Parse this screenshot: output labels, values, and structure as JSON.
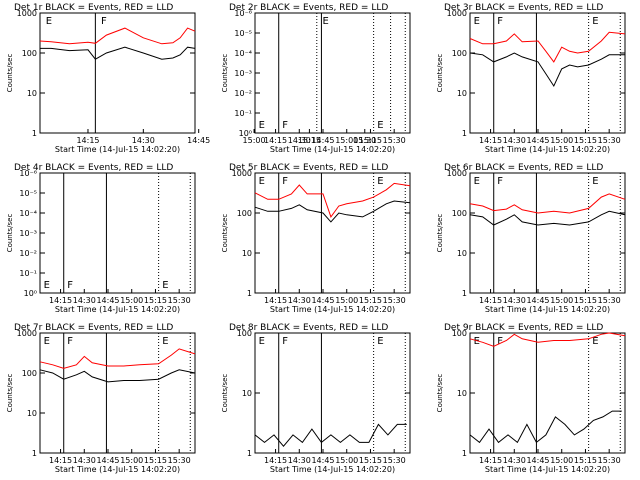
{
  "colors": {
    "background": "#ffffff",
    "axes": "#000000",
    "events": "#000000",
    "lld": "#ff0000"
  },
  "x_tick_labels": [
    "14:15",
    "14:30",
    "14:45",
    "15:00",
    "15:15",
    "15:30"
  ],
  "y_axis_label": "Counts/sec",
  "x_axis_label": "Start Time (14-Jul-15 14:02:20)",
  "chart_data": [
    {
      "type": "line",
      "title": "Det 1r BLACK = Events, RED = LLD",
      "ylabel": "Counts/sec",
      "xlabel": "Start Time (14-Jul-15 14:02:20)",
      "xlim": [
        "14:02",
        "14:44"
      ],
      "yscale": "log",
      "ylim": [
        1,
        1000
      ],
      "yticks": [
        "1",
        "10",
        "100",
        "1000"
      ],
      "xticks": [
        "14:15",
        "14:30",
        "14:45",
        "15:00",
        "15:15",
        "15:30"
      ],
      "markers": [
        "E",
        "F",
        "E"
      ],
      "series": [
        {
          "name": "LLD",
          "color": "red",
          "x": [
            "14:02",
            "14:05",
            "14:10",
            "14:15",
            "14:17",
            "14:20",
            "14:25",
            "14:30",
            "14:35",
            "14:38",
            "14:40",
            "14:42",
            "14:44"
          ],
          "y": [
            200,
            190,
            170,
            185,
            175,
            280,
            420,
            240,
            170,
            180,
            240,
            420,
            350
          ]
        },
        {
          "name": "Events",
          "color": "black",
          "x": [
            "14:02",
            "14:05",
            "14:10",
            "14:15",
            "14:17",
            "14:20",
            "14:25",
            "14:30",
            "14:35",
            "14:38",
            "14:40",
            "14:42",
            "14:44"
          ],
          "y": [
            130,
            130,
            115,
            120,
            70,
            100,
            140,
            100,
            70,
            75,
            90,
            140,
            130
          ]
        }
      ]
    },
    {
      "type": "line",
      "title": "Det 2r BLACK = Events, RED = LLD",
      "ylabel": "Counts/sec",
      "xlabel": "Start Time (14-Jul-15 14:02:20)",
      "xlim": [
        "14:02",
        "15:40"
      ],
      "yscale": "log",
      "yticks": [
        "10⁰",
        "10⁻¹",
        "10⁻²",
        "10⁻³",
        "10⁻⁴",
        "10⁻⁵",
        "10⁻⁶"
      ],
      "xticks": [
        "14:15",
        "14:30",
        "14:45",
        "15:00",
        "15:15",
        "15:30"
      ],
      "markers": [
        "E",
        "F",
        "E"
      ],
      "series": []
    },
    {
      "type": "line",
      "title": "Det 3r BLACK = Events, RED = LLD",
      "ylabel": "Counts/sec",
      "xlabel": "Start Time (14-Jul-15 14:02:20)",
      "xlim": [
        "14:02",
        "15:40"
      ],
      "yscale": "log",
      "ylim": [
        1,
        1000
      ],
      "yticks": [
        "1",
        "10",
        "100",
        "1000"
      ],
      "xticks": [
        "14:15",
        "14:30",
        "14:45",
        "15:00",
        "15:15",
        "15:30"
      ],
      "markers": [
        "E",
        "F",
        "E"
      ],
      "series": [
        {
          "name": "LLD",
          "color": "red",
          "x": [
            "14:02",
            "14:10",
            "14:17",
            "14:25",
            "14:30",
            "14:35",
            "14:45",
            "14:50",
            "14:55",
            "15:00",
            "15:05",
            "15:10",
            "15:17",
            "15:25",
            "15:30",
            "15:40"
          ],
          "y": [
            230,
            170,
            170,
            200,
            300,
            190,
            200,
            110,
            60,
            140,
            110,
            100,
            110,
            200,
            330,
            300
          ]
        },
        {
          "name": "Events",
          "color": "black",
          "x": [
            "14:02",
            "14:10",
            "14:17",
            "14:25",
            "14:30",
            "14:35",
            "14:45",
            "14:50",
            "14:55",
            "15:00",
            "15:05",
            "15:10",
            "15:17",
            "15:25",
            "15:30",
            "15:40"
          ],
          "y": [
            100,
            90,
            60,
            80,
            100,
            80,
            60,
            30,
            15,
            40,
            50,
            45,
            50,
            70,
            90,
            90
          ]
        }
      ]
    },
    {
      "type": "line",
      "title": "Det 4r BLACK = Events, RED = LLD",
      "ylabel": "Counts/sec",
      "xlabel": "Start Time (14-Jul-15 14:02:20)",
      "xlim": [
        "14:02",
        "15:40"
      ],
      "yscale": "log",
      "yticks": [
        "10⁰",
        "10⁻¹",
        "10⁻²",
        "10⁻³",
        "10⁻⁴",
        "10⁻⁵",
        "10⁻⁶"
      ],
      "xticks": [
        "14:15",
        "14:30",
        "14:45",
        "15:00",
        "15:15",
        "15:30"
      ],
      "markers": [
        "E",
        "F",
        "E"
      ],
      "series": []
    },
    {
      "type": "line",
      "title": "Det 5r BLACK = Events, RED = LLD",
      "ylabel": "Counts/sec",
      "xlabel": "Start Time (14-Jul-15 14:02:20)",
      "xlim": [
        "14:02",
        "15:40"
      ],
      "yscale": "log",
      "ylim": [
        1,
        1000
      ],
      "yticks": [
        "1",
        "10",
        "100",
        "1000"
      ],
      "xticks": [
        "14:15",
        "14:30",
        "14:45",
        "15:00",
        "15:15",
        "15:30"
      ],
      "markers": [
        "E",
        "F",
        "E"
      ],
      "series": [
        {
          "name": "LLD",
          "color": "red",
          "x": [
            "14:02",
            "14:10",
            "14:17",
            "14:25",
            "14:30",
            "14:35",
            "14:45",
            "14:50",
            "14:55",
            "15:00",
            "15:10",
            "15:17",
            "15:25",
            "15:30",
            "15:40"
          ],
          "y": [
            320,
            220,
            220,
            300,
            500,
            300,
            300,
            80,
            150,
            170,
            200,
            250,
            380,
            550,
            480
          ]
        },
        {
          "name": "Events",
          "color": "black",
          "x": [
            "14:02",
            "14:10",
            "14:17",
            "14:25",
            "14:30",
            "14:35",
            "14:45",
            "14:50",
            "14:55",
            "15:00",
            "15:10",
            "15:17",
            "15:25",
            "15:30",
            "15:40"
          ],
          "y": [
            140,
            110,
            110,
            130,
            160,
            120,
            100,
            60,
            100,
            90,
            80,
            110,
            170,
            200,
            180
          ]
        }
      ]
    },
    {
      "type": "line",
      "title": "Det 6r BLACK = Events, RED = LLD",
      "ylabel": "Counts/sec",
      "xlabel": "Start Time (14-Jul-15 14:02:20)",
      "xlim": [
        "14:02",
        "15:40"
      ],
      "yscale": "log",
      "ylim": [
        1,
        1000
      ],
      "yticks": [
        "1",
        "10",
        "100",
        "1000"
      ],
      "xticks": [
        "14:15",
        "14:30",
        "14:45",
        "15:00",
        "15:15",
        "15:30"
      ],
      "markers": [
        "E",
        "F",
        "E"
      ],
      "series": [
        {
          "name": "LLD",
          "color": "red",
          "x": [
            "14:02",
            "14:10",
            "14:17",
            "14:25",
            "14:30",
            "14:35",
            "14:45",
            "14:55",
            "15:05",
            "15:17",
            "15:25",
            "15:30",
            "15:40"
          ],
          "y": [
            170,
            150,
            115,
            125,
            160,
            120,
            100,
            110,
            100,
            130,
            250,
            300,
            220
          ]
        },
        {
          "name": "Events",
          "color": "black",
          "x": [
            "14:02",
            "14:10",
            "14:17",
            "14:25",
            "14:30",
            "14:35",
            "14:45",
            "14:55",
            "15:05",
            "15:17",
            "15:25",
            "15:30",
            "15:40"
          ],
          "y": [
            90,
            80,
            50,
            70,
            90,
            60,
            50,
            55,
            50,
            60,
            90,
            110,
            90
          ]
        }
      ]
    },
    {
      "type": "line",
      "title": "Det 7r BLACK = Events, RED = LLD",
      "ylabel": "Counts/sec",
      "xlabel": "Start Time (14-Jul-15 14:02:20)",
      "xlim": [
        "14:02",
        "15:40"
      ],
      "yscale": "log",
      "ylim": [
        1,
        1000
      ],
      "yticks": [
        "1",
        "10",
        "100",
        "1000"
      ],
      "xticks": [
        "14:15",
        "14:30",
        "14:45",
        "15:00",
        "15:15",
        "15:30"
      ],
      "markers": [
        "E",
        "F",
        "E"
      ],
      "series": [
        {
          "name": "LLD",
          "color": "red",
          "x": [
            "14:02",
            "14:10",
            "14:17",
            "14:25",
            "14:30",
            "14:35",
            "14:45",
            "14:55",
            "15:05",
            "15:17",
            "15:25",
            "15:30",
            "15:40"
          ],
          "y": [
            190,
            160,
            130,
            160,
            260,
            180,
            150,
            150,
            160,
            170,
            280,
            400,
            300
          ]
        },
        {
          "name": "Events",
          "color": "black",
          "x": [
            "14:02",
            "14:10",
            "14:17",
            "14:25",
            "14:30",
            "14:35",
            "14:45",
            "14:55",
            "15:05",
            "15:17",
            "15:25",
            "15:30",
            "15:40"
          ],
          "y": [
            120,
            100,
            70,
            90,
            110,
            80,
            60,
            65,
            65,
            70,
            100,
            120,
            100
          ]
        }
      ]
    },
    {
      "type": "line",
      "title": "Det 8r BLACK = Events, RED = LLD",
      "ylabel": "Counts/sec",
      "xlabel": "Start Time (14-Jul-15 14:02:20)",
      "xlim": [
        "14:02",
        "15:40"
      ],
      "yscale": "log",
      "ylim": [
        1,
        100
      ],
      "yticks": [
        "1",
        "10",
        "100"
      ],
      "xticks": [
        "14:15",
        "14:30",
        "14:45",
        "15:00",
        "15:15",
        "15:30"
      ],
      "markers": [
        "E",
        "F",
        "E"
      ],
      "series": [
        {
          "name": "Events",
          "color": "black",
          "x": [
            "14:02",
            "14:08",
            "14:14",
            "14:20",
            "14:26",
            "14:32",
            "14:38",
            "14:44",
            "14:50",
            "14:56",
            "15:02",
            "15:08",
            "15:14",
            "15:20",
            "15:26",
            "15:32",
            "15:38"
          ],
          "y": [
            2,
            1.5,
            2,
            1.3,
            2,
            1.5,
            2.5,
            1.5,
            2,
            1.5,
            2,
            1.5,
            1.5,
            3,
            2,
            3,
            3
          ]
        }
      ]
    },
    {
      "type": "line",
      "title": "Det 9r BLACK = Events, RED = LLD",
      "ylabel": "Counts/sec",
      "xlabel": "Start Time (14-Jul-15 14:02:20)",
      "xlim": [
        "14:02",
        "15:40"
      ],
      "yscale": "log",
      "ylim": [
        1,
        100
      ],
      "yticks": [
        "1",
        "10",
        "100"
      ],
      "xticks": [
        "14:15",
        "14:30",
        "14:45",
        "15:00",
        "15:15",
        "15:30"
      ],
      "markers": [
        "E",
        "F",
        "E"
      ],
      "series": [
        {
          "name": "LLD",
          "color": "red",
          "x": [
            "14:02",
            "14:10",
            "14:17",
            "14:25",
            "14:30",
            "14:35",
            "14:45",
            "14:55",
            "15:05",
            "15:17",
            "15:25",
            "15:30",
            "15:40"
          ],
          "y": [
            80,
            70,
            60,
            75,
            95,
            80,
            70,
            75,
            75,
            80,
            95,
            100,
            90
          ]
        },
        {
          "name": "Events",
          "color": "black",
          "x": [
            "14:02",
            "14:08",
            "14:14",
            "14:20",
            "14:26",
            "14:32",
            "14:38",
            "14:44",
            "14:50",
            "14:56",
            "15:02",
            "15:08",
            "15:14",
            "15:20",
            "15:26",
            "15:32",
            "15:38"
          ],
          "y": [
            2,
            1.5,
            2.5,
            1.5,
            2,
            1.5,
            3,
            1.5,
            2,
            4,
            3,
            2,
            2.5,
            3.5,
            4,
            5,
            5
          ]
        }
      ]
    }
  ]
}
